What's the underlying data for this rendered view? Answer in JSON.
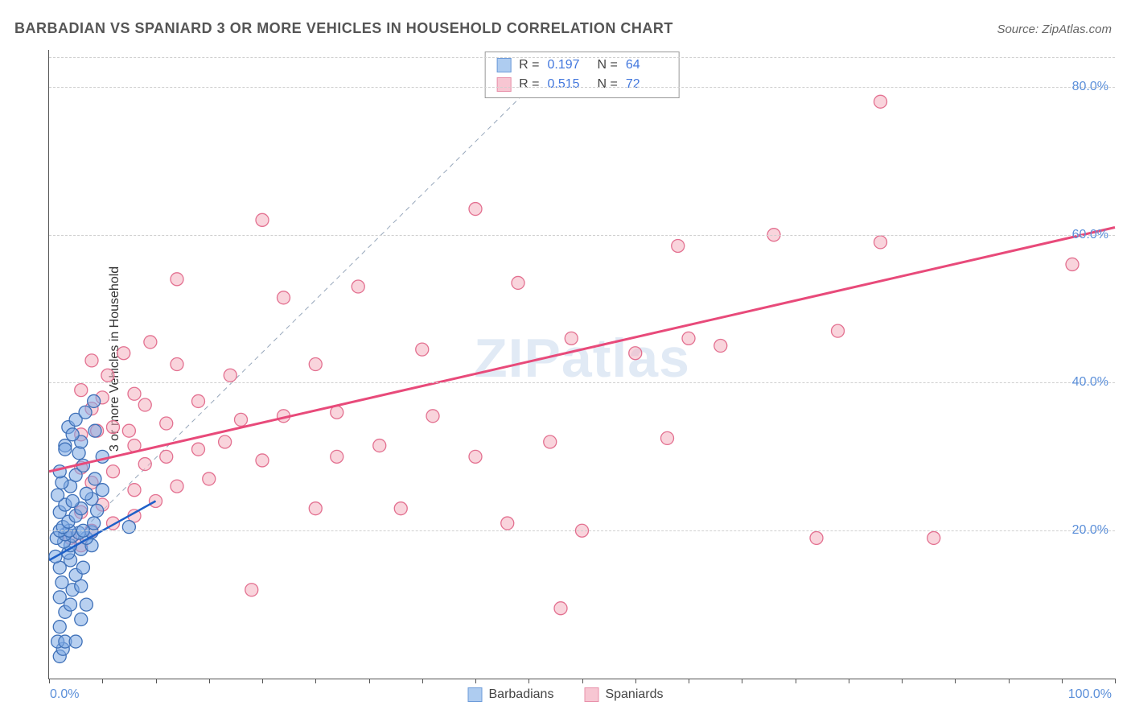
{
  "title": "BARBADIAN VS SPANIARD 3 OR MORE VEHICLES IN HOUSEHOLD CORRELATION CHART",
  "source": "Source: ZipAtlas.com",
  "watermark": "ZIPatlas",
  "ylabel": "3 or more Vehicles in Household",
  "chart": {
    "type": "scatter",
    "xlim": [
      0,
      100
    ],
    "ylim": [
      0,
      85
    ],
    "yticks": [
      20,
      40,
      60,
      80
    ],
    "ytick_labels": [
      "20.0%",
      "40.0%",
      "60.0%",
      "80.0%"
    ],
    "xtick_labels": [
      "0.0%",
      "100.0%"
    ],
    "xtick_marks": [
      0,
      5,
      10,
      15,
      20,
      25,
      30,
      35,
      40,
      45,
      50,
      55,
      60,
      65,
      70,
      75,
      80,
      85,
      90,
      95,
      100
    ],
    "background_color": "#ffffff",
    "grid_color": "#d0d0d0",
    "axis_color": "#555555",
    "marker_radius": 8,
    "marker_opacity": 0.55,
    "series": [
      {
        "name": "Barbadians",
        "fill_color": "#7DA9E3",
        "stroke_color": "#3E70B8",
        "trend": {
          "x1": 0,
          "y1": 16,
          "x2": 10,
          "y2": 24,
          "width": 2.5,
          "color": "#1E60C8"
        },
        "R": 0.197,
        "N": 64,
        "points": [
          [
            1,
            3
          ],
          [
            1.3,
            4
          ],
          [
            0.8,
            5
          ],
          [
            1.5,
            5
          ],
          [
            2.5,
            5
          ],
          [
            1,
            7
          ],
          [
            3,
            8
          ],
          [
            1.5,
            9
          ],
          [
            2,
            10
          ],
          [
            3.5,
            10
          ],
          [
            1,
            11
          ],
          [
            2.2,
            12
          ],
          [
            3,
            12.5
          ],
          [
            1.2,
            13
          ],
          [
            2.5,
            14
          ],
          [
            3.2,
            15
          ],
          [
            1,
            15
          ],
          [
            2,
            16
          ],
          [
            0.6,
            16.5
          ],
          [
            1.8,
            17
          ],
          [
            3,
            17.5
          ],
          [
            4,
            18
          ],
          [
            2,
            18
          ],
          [
            1.4,
            18.5
          ],
          [
            3.5,
            19
          ],
          [
            0.7,
            19
          ],
          [
            2.2,
            19.3
          ],
          [
            1.5,
            19.5
          ],
          [
            2.8,
            19.7
          ],
          [
            4,
            19.8
          ],
          [
            1,
            20
          ],
          [
            1.9,
            20
          ],
          [
            3.2,
            20
          ],
          [
            7.5,
            20.5
          ],
          [
            1.3,
            20.5
          ],
          [
            4.2,
            21
          ],
          [
            1.8,
            21.2
          ],
          [
            2.5,
            22
          ],
          [
            1,
            22.5
          ],
          [
            4.5,
            22.7
          ],
          [
            3,
            23
          ],
          [
            1.5,
            23.5
          ],
          [
            2.2,
            24
          ],
          [
            4,
            24.3
          ],
          [
            0.8,
            24.8
          ],
          [
            3.5,
            25
          ],
          [
            5,
            25.5
          ],
          [
            2,
            26
          ],
          [
            1.2,
            26.5
          ],
          [
            4.3,
            27
          ],
          [
            2.5,
            27.5
          ],
          [
            1,
            28
          ],
          [
            3.2,
            28.8
          ],
          [
            5,
            30
          ],
          [
            2.8,
            30.5
          ],
          [
            1.5,
            31.5
          ],
          [
            3,
            32
          ],
          [
            4.3,
            33.5
          ],
          [
            1.8,
            34
          ],
          [
            2.5,
            35
          ],
          [
            3.4,
            36
          ],
          [
            4.2,
            37.5
          ],
          [
            1.5,
            31
          ],
          [
            2.2,
            33
          ]
        ]
      },
      {
        "name": "Spaniards",
        "fill_color": "#F4B0C0",
        "stroke_color": "#E37090",
        "trend": {
          "x1": 0,
          "y1": 28,
          "x2": 100,
          "y2": 61,
          "width": 3,
          "color": "#E84A7A"
        },
        "R": 0.515,
        "N": 72,
        "points": [
          [
            19,
            12
          ],
          [
            48,
            9.5
          ],
          [
            3,
            18
          ],
          [
            2,
            19
          ],
          [
            4,
            20
          ],
          [
            6,
            21
          ],
          [
            8,
            22
          ],
          [
            3,
            22.5
          ],
          [
            5,
            23.5
          ],
          [
            10,
            24
          ],
          [
            25,
            23
          ],
          [
            8,
            25.5
          ],
          [
            12,
            26
          ],
          [
            4,
            26.5
          ],
          [
            15,
            27
          ],
          [
            6,
            28
          ],
          [
            3,
            28.5
          ],
          [
            9,
            29
          ],
          [
            20,
            29.5
          ],
          [
            11,
            30
          ],
          [
            27,
            30
          ],
          [
            40,
            30
          ],
          [
            14,
            31
          ],
          [
            31,
            31.5
          ],
          [
            8,
            31.5
          ],
          [
            47,
            32
          ],
          [
            58,
            32.5
          ],
          [
            3,
            33
          ],
          [
            4.5,
            33.5
          ],
          [
            6,
            34
          ],
          [
            11,
            34.5
          ],
          [
            18,
            35
          ],
          [
            22,
            35.5
          ],
          [
            27,
            36
          ],
          [
            4,
            36.5
          ],
          [
            9,
            37
          ],
          [
            14,
            37.5
          ],
          [
            5,
            38
          ],
          [
            8,
            38.5
          ],
          [
            3,
            39
          ],
          [
            17,
            41
          ],
          [
            25,
            42.5
          ],
          [
            4,
            43
          ],
          [
            7,
            44
          ],
          [
            55,
            44
          ],
          [
            35,
            44.5
          ],
          [
            63,
            45
          ],
          [
            49,
            46
          ],
          [
            72,
            19
          ],
          [
            83,
            19
          ],
          [
            43,
            21
          ],
          [
            22,
            51.5
          ],
          [
            29,
            53
          ],
          [
            44,
            53.5
          ],
          [
            12,
            54
          ],
          [
            74,
            47
          ],
          [
            60,
            46
          ],
          [
            59,
            58.5
          ],
          [
            78,
            59
          ],
          [
            96,
            56
          ],
          [
            68,
            60
          ],
          [
            20,
            62
          ],
          [
            40,
            63.5
          ],
          [
            78,
            78
          ],
          [
            33,
            23
          ],
          [
            36,
            35.5
          ],
          [
            12,
            42.5
          ],
          [
            7.5,
            33.5
          ],
          [
            16.5,
            32
          ],
          [
            5.5,
            41
          ],
          [
            9.5,
            45.5
          ],
          [
            50,
            20
          ]
        ]
      }
    ],
    "center_dashed_line": {
      "x1": 1,
      "y1": 17,
      "x2": 48,
      "y2": 84,
      "color": "#97a7bb",
      "dash": "6,5",
      "width": 1
    }
  },
  "stats_box": {
    "rows": [
      {
        "swatch_fill": "#AECCF0",
        "swatch_border": "#6C9BD9",
        "r_label": "R =",
        "r_value": "0.197",
        "n_label": "N =",
        "n_value": "64"
      },
      {
        "swatch_fill": "#F7C6D2",
        "swatch_border": "#E890AA",
        "r_label": "R =",
        "r_value": "0.515",
        "n_label": "N =",
        "n_value": "72"
      }
    ]
  },
  "bottom_legend": [
    {
      "swatch_fill": "#AECCF0",
      "swatch_border": "#6C9BD9",
      "label": "Barbadians"
    },
    {
      "swatch_fill": "#F7C6D2",
      "swatch_border": "#E890AA",
      "label": "Spaniards"
    }
  ]
}
